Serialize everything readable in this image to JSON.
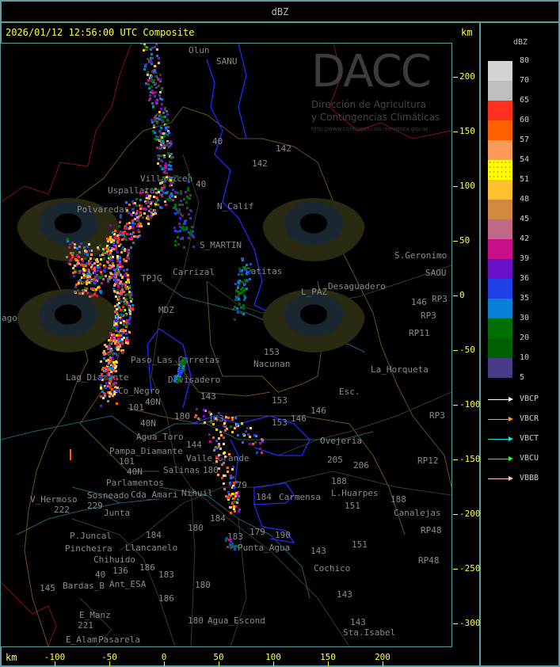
{
  "header": {
    "title": "dBZ"
  },
  "panel": {
    "title": "2026/01/12 12:56:00 UTC Composite",
    "unit_top": "km",
    "unit_bottom": "km"
  },
  "axes": {
    "x_ticks": [
      "-100",
      "-50",
      "0",
      "50",
      "100",
      "150",
      "200"
    ],
    "y_ticks": [
      "200",
      "150",
      "100",
      "50",
      "0",
      "-50",
      "-100",
      "-150",
      "-200",
      "-250",
      "-300"
    ]
  },
  "watermark": {
    "brand": "DACC",
    "line1": "Dirección de Agricultura",
    "line2": "y Contingencias Climáticas",
    "url": "http://www.contingencias.mendoza.gov.ar"
  },
  "legend": {
    "title": "dBZ",
    "levels": [
      {
        "label": "80",
        "color": "#d4d4d4"
      },
      {
        "label": "70",
        "color": "#bebebe"
      },
      {
        "label": "65",
        "color": "#ff3020"
      },
      {
        "label": "60",
        "color": "#ff6000"
      },
      {
        "label": "57",
        "color": "#ff9a5a"
      },
      {
        "label": "54",
        "color": "#ffff00"
      },
      {
        "label": "51",
        "color": "#ffc030"
      },
      {
        "label": "48",
        "color": "#d08a40"
      },
      {
        "label": "45",
        "color": "#c06888"
      },
      {
        "label": "42",
        "color": "#c81088"
      },
      {
        "label": "39",
        "color": "#6a10c8"
      },
      {
        "label": "36",
        "color": "#2040e8"
      },
      {
        "label": "35",
        "color": "#0880d8"
      },
      {
        "label": "30",
        "color": "#007000"
      },
      {
        "label": "20",
        "color": "#006000"
      },
      {
        "label": "10",
        "color": "#483c88"
      },
      {
        "label": "5",
        "color": ""
      }
    ],
    "vectors": [
      {
        "label": "VBCP",
        "color": "#ffffff"
      },
      {
        "label": "VBCR",
        "color": "#ffa020"
      },
      {
        "label": "VBCT",
        "color": "#20e0e0"
      },
      {
        "label": "VBCU",
        "color": "#20ff20"
      },
      {
        "label": "VBBB",
        "color": "#ffc0c8"
      }
    ]
  },
  "map": {
    "places": [
      "Olun",
      "SANU",
      "40",
      "142",
      "142",
      "Villavicen",
      "Uspallata",
      "Polvaredas",
      "N_Calif",
      "40",
      "S_MARTIN",
      "Carrizal",
      "Catitas",
      "L_PAZ",
      "Desaguadero",
      "S.Geronimo",
      "SAOU",
      "RP3",
      "146",
      "RP3",
      "RP11",
      "153",
      "Nacunan",
      "La_Horqueta",
      "Paso_Las_Carretas",
      "Lag_Diamante",
      "Co_Negro",
      "Divisadero",
      "40N",
      "143",
      "101",
      "153",
      "146",
      "Esc.",
      "RP3",
      "40N",
      "Agua_Toro",
      "180",
      "143",
      "153",
      "146",
      "Valle_Grande",
      "144",
      "Pampa_Diamante",
      "101",
      "40N",
      "Salinas",
      "180",
      "Ovejeria",
      "205",
      "206",
      "RP12",
      "Parlamentos",
      "Cda_Amari",
      "Sosneado",
      "179",
      "184",
      "Nihuil",
      "188",
      "L.Huarpes",
      "Carmensa",
      "188",
      "Canalejas",
      "151",
      "V_Hermoso",
      "222",
      "229",
      "Junta",
      "180",
      "184",
      "179",
      "190",
      "184",
      "183",
      "P.Juncal",
      "Pincheira",
      "Llancanelo",
      "Chihuido",
      "Punta_Agua",
      "151",
      "RP48",
      "143",
      "136",
      "186",
      "183",
      "40",
      "Ant_ESA",
      "Cochico",
      "180",
      "145",
      "Bardas_B",
      "186",
      "143",
      "RP48",
      "E_Manz",
      "221",
      "E_Alam",
      "Pasarela",
      "180",
      "Agua_Escond",
      "143",
      "Sta.Isabel",
      "ago",
      "TPJG",
      "MDZ"
    ]
  }
}
